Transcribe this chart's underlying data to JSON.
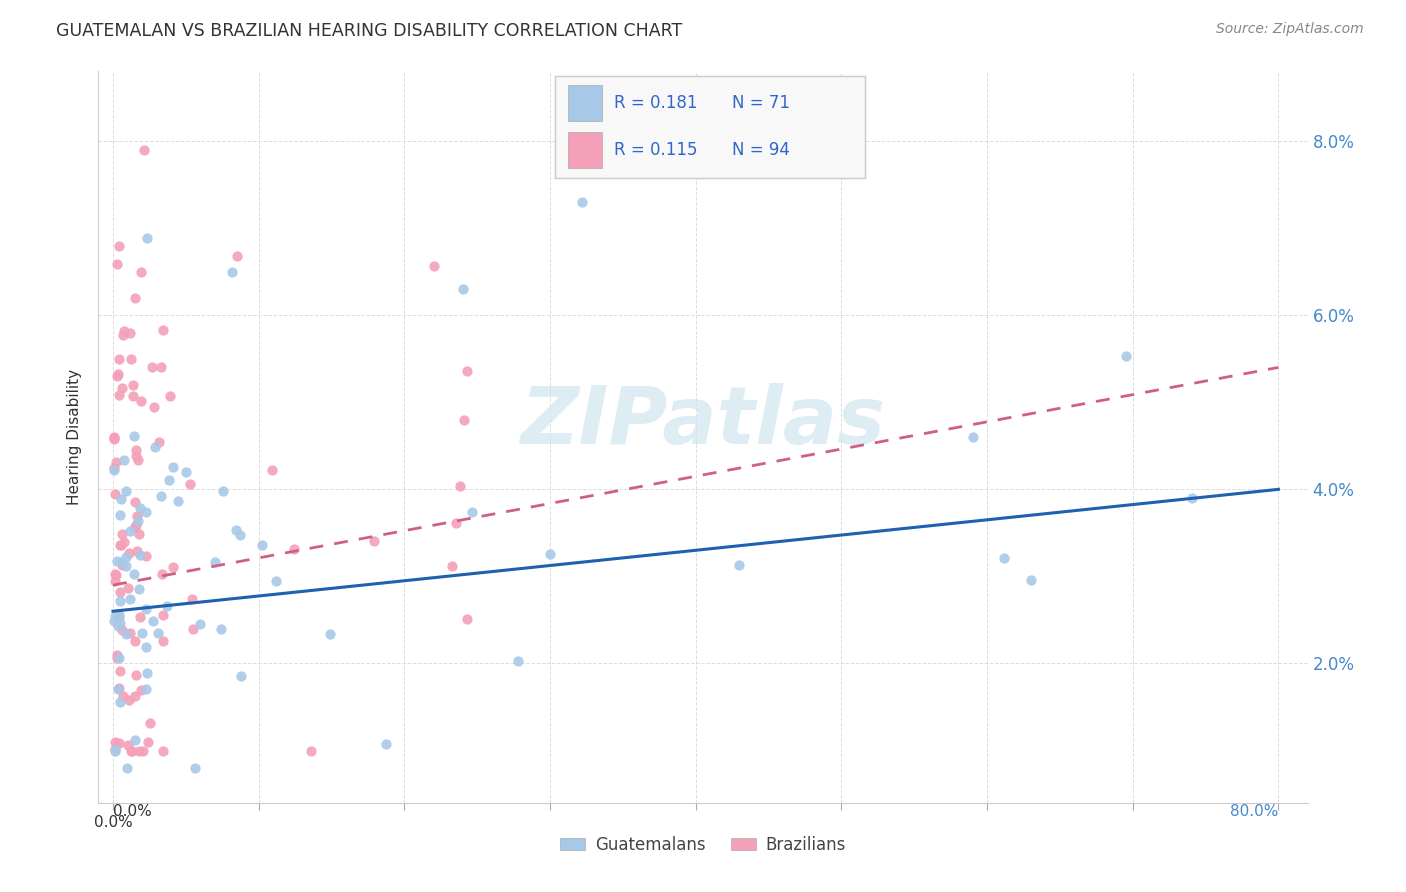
{
  "title": "GUATEMALAN VS BRAZILIAN HEARING DISABILITY CORRELATION CHART",
  "source": "Source: ZipAtlas.com",
  "ylabel": "Hearing Disability",
  "xlim": [
    -0.01,
    0.82
  ],
  "ylim": [
    0.004,
    0.088
  ],
  "ytick_vals": [
    0.02,
    0.04,
    0.06,
    0.08
  ],
  "ytick_labels": [
    "2.0%",
    "4.0%",
    "6.0%",
    "8.0%"
  ],
  "xtick_vals": [
    0.0,
    0.1,
    0.2,
    0.3,
    0.4,
    0.5,
    0.6,
    0.7,
    0.8
  ],
  "blue_color": "#a8c8e8",
  "pink_color": "#f4a0b8",
  "blue_line_color": "#2060b0",
  "pink_line_color": "#d06080",
  "axis_text_color": "#4488cc",
  "title_color": "#333333",
  "source_color": "#888888",
  "grid_color": "#dddddd",
  "legend_text_color": "#3366cc",
  "legend_bg": "#f8f8f8",
  "legend_border": "#cccccc",
  "watermark": "ZIPatlas",
  "watermark_color": "#d0e4f0",
  "guatemalans_label": "Guatemalans",
  "brazilians_label": "Brazilians",
  "legend_R_blue": "R = 0.181",
  "legend_N_blue": "N = 71",
  "legend_R_pink": "R = 0.115",
  "legend_N_pink": "N = 94",
  "seed": 42,
  "n_guatemalans": 71,
  "n_brazilians": 94
}
